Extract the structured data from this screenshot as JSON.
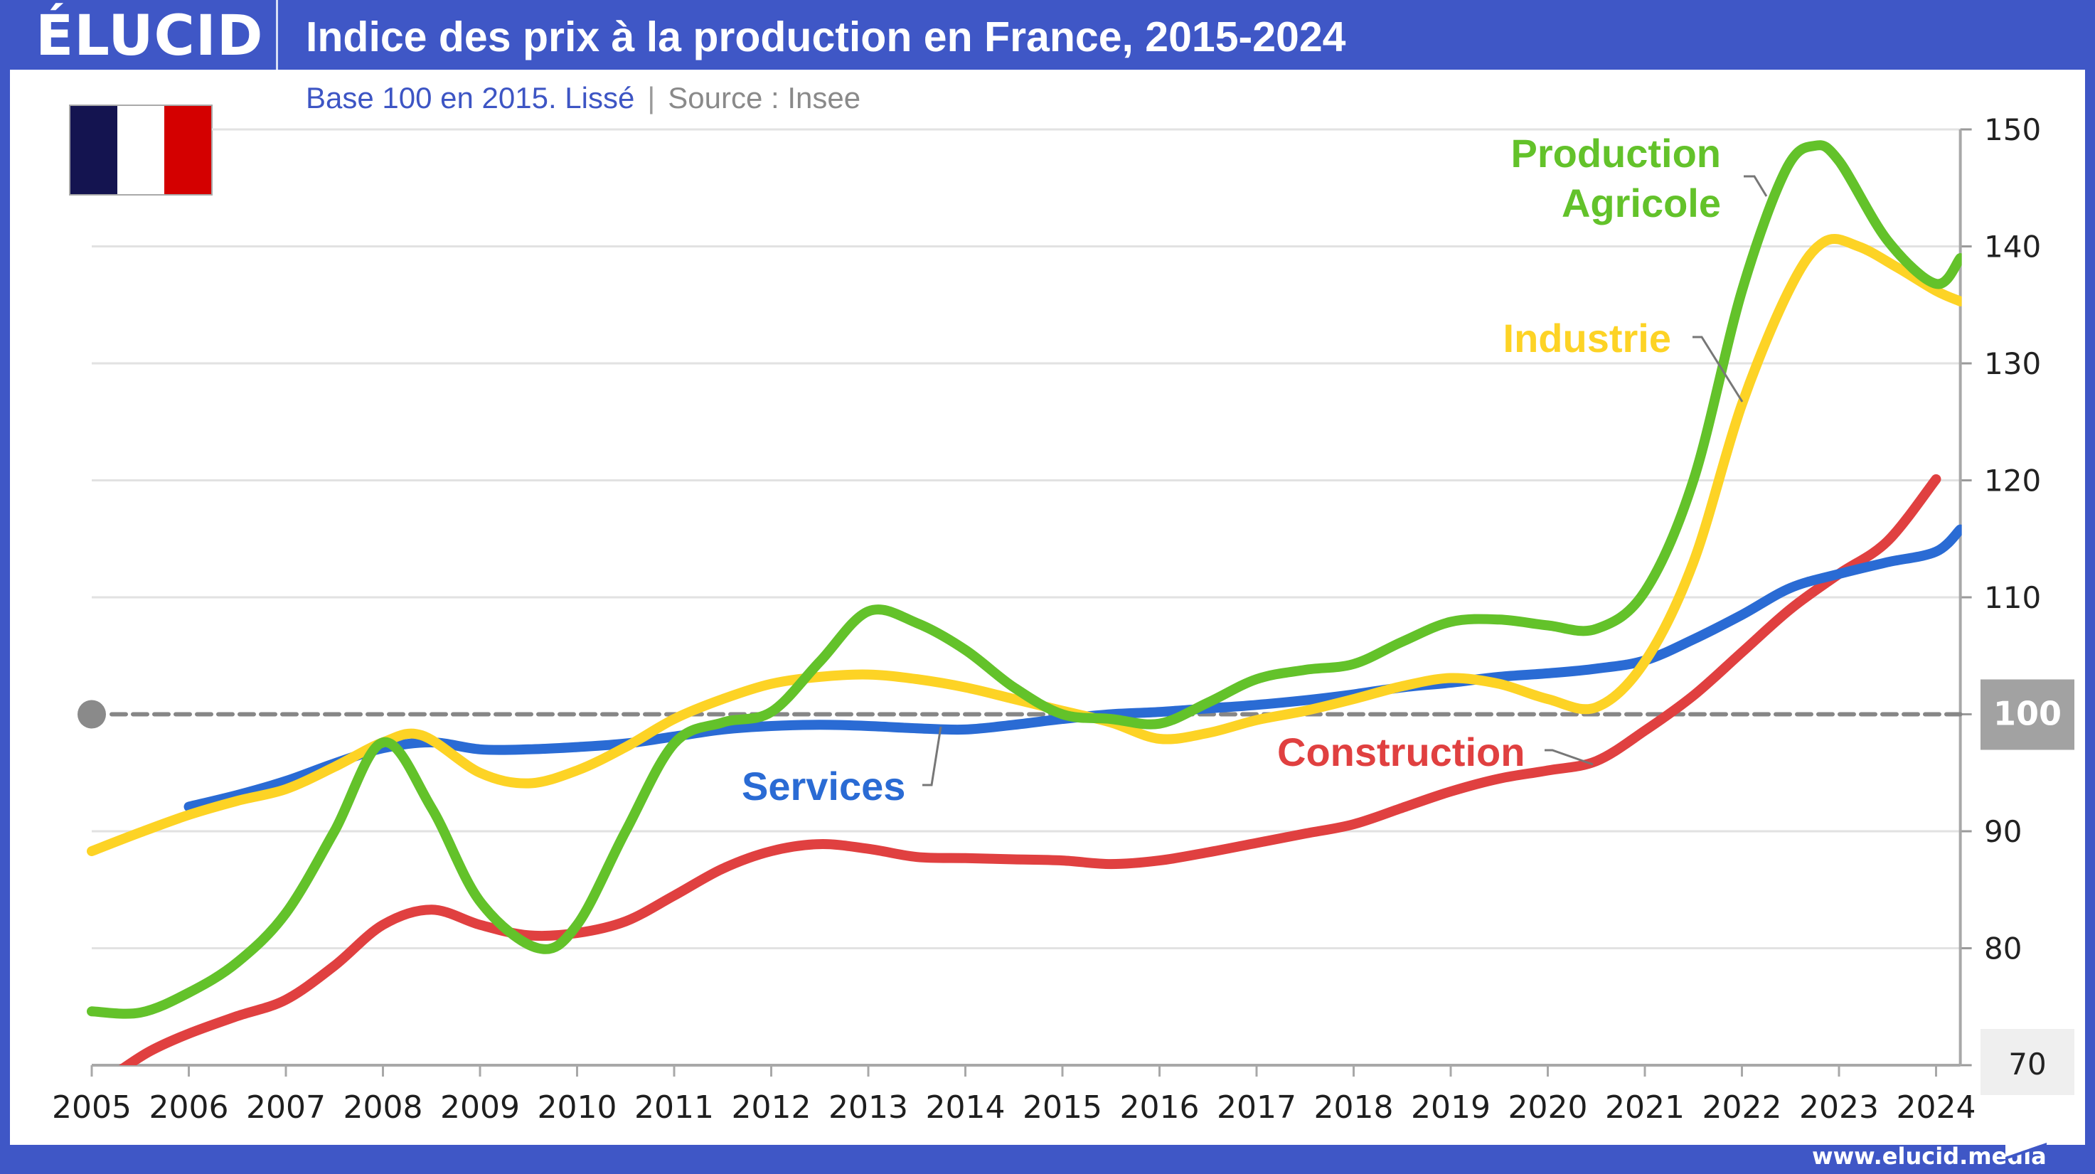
{
  "header": {
    "logo": "ÉLUCID",
    "title": "Indice des prix à la production en France, 2015-2024"
  },
  "subtitle": {
    "base": "Base 100 en 2015. Lissé",
    "separator": "|",
    "source": "Source : Insee"
  },
  "flag": {
    "icon": "france-flag-icon",
    "colors": [
      "#141450",
      "#ffffff",
      "#d40000"
    ]
  },
  "footer": {
    "url": "www.elucid.media"
  },
  "chart_data": {
    "type": "line",
    "title": "Indice des prix à la production en France, 2015-2024",
    "subtitle": "Base 100 en 2015. Lissé | Source : Insee",
    "xlabel": "",
    "ylabel": "",
    "xlim": [
      2005,
      2024.25
    ],
    "ylim": [
      70,
      150
    ],
    "x_ticks": [
      "2005",
      "2006",
      "2007",
      "2008",
      "2009",
      "2010",
      "2011",
      "2012",
      "2013",
      "2014",
      "2015",
      "2016",
      "2017",
      "2018",
      "2019",
      "2020",
      "2021",
      "2022",
      "2023",
      "2024"
    ],
    "y_ticks": [
      "150",
      "140",
      "130",
      "120",
      "110",
      "100",
      "90",
      "80",
      "70"
    ],
    "y_tick_values": [
      150,
      140,
      130,
      120,
      110,
      100,
      90,
      80,
      70
    ],
    "highlighted_y_tick": "100",
    "reference_line": {
      "value": 100,
      "style": "dashed",
      "color": "#868686"
    },
    "grid": true,
    "y_axis_position": "right",
    "series": [
      {
        "name": "Production Agricole",
        "label": [
          "Production",
          "Agricole"
        ],
        "color": "#63c22a",
        "points": [
          [
            2005,
            74.6
          ],
          [
            2005.5,
            74.5
          ],
          [
            2006,
            76.2
          ],
          [
            2006.5,
            78.8
          ],
          [
            2007,
            83
          ],
          [
            2007.5,
            90
          ],
          [
            2008,
            97.6
          ],
          [
            2008.5,
            92
          ],
          [
            2009,
            84
          ],
          [
            2009.6,
            80.0
          ],
          [
            2010,
            82
          ],
          [
            2010.5,
            90
          ],
          [
            2011,
            97.5
          ],
          [
            2011.5,
            99.3
          ],
          [
            2012,
            100.2
          ],
          [
            2012.5,
            104.5
          ],
          [
            2013,
            108.8
          ],
          [
            2013.5,
            107.8
          ],
          [
            2014,
            105.5
          ],
          [
            2014.5,
            102.3
          ],
          [
            2015,
            100
          ],
          [
            2015.5,
            99.6
          ],
          [
            2016,
            99.2
          ],
          [
            2016.5,
            101
          ],
          [
            2017,
            103
          ],
          [
            2017.5,
            103.8
          ],
          [
            2018,
            104.3
          ],
          [
            2018.5,
            106.2
          ],
          [
            2019,
            107.9
          ],
          [
            2019.5,
            108.1
          ],
          [
            2020,
            107.6
          ],
          [
            2020.5,
            107.3
          ],
          [
            2021,
            110.5
          ],
          [
            2021.5,
            120
          ],
          [
            2022,
            136.2
          ],
          [
            2022.45,
            146.5
          ],
          [
            2022.75,
            148.6
          ],
          [
            2023,
            147.3
          ],
          [
            2023.5,
            140.5
          ],
          [
            2024,
            136.8
          ],
          [
            2024.25,
            139
          ]
        ]
      },
      {
        "name": "Industrie",
        "label": [
          "Industrie"
        ],
        "color": "#fdd325",
        "points": [
          [
            2005,
            88.3
          ],
          [
            2005.5,
            89.9
          ],
          [
            2006,
            91.4
          ],
          [
            2006.5,
            92.6
          ],
          [
            2007,
            93.6
          ],
          [
            2007.5,
            95.5
          ],
          [
            2008,
            97.6
          ],
          [
            2008.4,
            98.2
          ],
          [
            2009,
            95.0
          ],
          [
            2009.5,
            94.1
          ],
          [
            2010,
            95.2
          ],
          [
            2010.5,
            97.2
          ],
          [
            2011,
            99.6
          ],
          [
            2011.5,
            101.3
          ],
          [
            2012,
            102.6
          ],
          [
            2012.5,
            103.2
          ],
          [
            2013,
            103.4
          ],
          [
            2013.5,
            103.0
          ],
          [
            2014,
            102.3
          ],
          [
            2014.5,
            101.3
          ],
          [
            2015,
            100.3
          ],
          [
            2015.5,
            99.3
          ],
          [
            2016,
            97.9
          ],
          [
            2016.5,
            98.4
          ],
          [
            2017,
            99.5
          ],
          [
            2017.5,
            100.3
          ],
          [
            2018,
            101.3
          ],
          [
            2018.5,
            102.4
          ],
          [
            2019,
            103.1
          ],
          [
            2019.5,
            102.6
          ],
          [
            2020,
            101.3
          ],
          [
            2020.5,
            100.6
          ],
          [
            2021,
            104.5
          ],
          [
            2021.5,
            113
          ],
          [
            2022,
            126.5
          ],
          [
            2022.5,
            136.5
          ],
          [
            2022.85,
            140.4
          ],
          [
            2023.2,
            140.0
          ],
          [
            2023.6,
            138.2
          ],
          [
            2024,
            136.2
          ],
          [
            2024.25,
            135.3
          ]
        ]
      },
      {
        "name": "Services",
        "label": [
          "Services"
        ],
        "color": "#2a6bd4",
        "points": [
          [
            2006,
            92.1
          ],
          [
            2006.5,
            93.1
          ],
          [
            2007,
            94.3
          ],
          [
            2007.5,
            95.8
          ],
          [
            2008,
            97.1
          ],
          [
            2008.5,
            97.6
          ],
          [
            2009,
            97.0
          ],
          [
            2009.5,
            97.0
          ],
          [
            2010,
            97.2
          ],
          [
            2010.5,
            97.5
          ],
          [
            2011,
            98.1
          ],
          [
            2011.5,
            98.7
          ],
          [
            2012,
            99.0
          ],
          [
            2012.5,
            99.1
          ],
          [
            2013,
            99.0
          ],
          [
            2013.5,
            98.8
          ],
          [
            2014,
            98.7
          ],
          [
            2014.5,
            99.1
          ],
          [
            2015,
            99.6
          ],
          [
            2015.5,
            100.0
          ],
          [
            2016,
            100.2
          ],
          [
            2016.5,
            100.5
          ],
          [
            2017,
            100.8
          ],
          [
            2017.5,
            101.2
          ],
          [
            2018,
            101.7
          ],
          [
            2018.5,
            102.3
          ],
          [
            2019,
            102.7
          ],
          [
            2019.5,
            103.2
          ],
          [
            2020,
            103.5
          ],
          [
            2020.5,
            103.9
          ],
          [
            2021,
            104.6
          ],
          [
            2021.5,
            106.4
          ],
          [
            2022,
            108.5
          ],
          [
            2022.5,
            110.8
          ],
          [
            2023,
            112.0
          ],
          [
            2023.5,
            113.0
          ],
          [
            2024,
            113.9
          ],
          [
            2024.25,
            115.8
          ]
        ]
      },
      {
        "name": "Construction",
        "label": [
          "Construction"
        ],
        "color": "#e04040",
        "points": [
          [
            2005.3,
            69.6
          ],
          [
            2005.6,
            71.2
          ],
          [
            2006,
            72.7
          ],
          [
            2006.5,
            74.2
          ],
          [
            2007,
            75.6
          ],
          [
            2007.5,
            78.5
          ],
          [
            2008,
            82
          ],
          [
            2008.5,
            83.3
          ],
          [
            2009,
            82.0
          ],
          [
            2009.5,
            81.1
          ],
          [
            2010,
            81.3
          ],
          [
            2010.5,
            82.3
          ],
          [
            2011,
            84.5
          ],
          [
            2011.5,
            86.8
          ],
          [
            2012,
            88.3
          ],
          [
            2012.5,
            88.9
          ],
          [
            2013,
            88.5
          ],
          [
            2013.5,
            87.8
          ],
          [
            2014,
            87.7
          ],
          [
            2014.5,
            87.6
          ],
          [
            2015,
            87.5
          ],
          [
            2015.5,
            87.2
          ],
          [
            2016,
            87.5
          ],
          [
            2016.5,
            88.2
          ],
          [
            2017,
            89.0
          ],
          [
            2017.5,
            89.8
          ],
          [
            2018,
            90.6
          ],
          [
            2018.5,
            92.0
          ],
          [
            2019,
            93.4
          ],
          [
            2019.5,
            94.5
          ],
          [
            2020,
            95.2
          ],
          [
            2020.5,
            96.0
          ],
          [
            2021,
            98.6
          ],
          [
            2021.5,
            101.6
          ],
          [
            2022,
            105.3
          ],
          [
            2022.5,
            109.0
          ],
          [
            2023,
            112.0
          ],
          [
            2023.5,
            114.8
          ],
          [
            2024,
            120.1
          ]
        ]
      }
    ],
    "legend": "inline-labels"
  }
}
